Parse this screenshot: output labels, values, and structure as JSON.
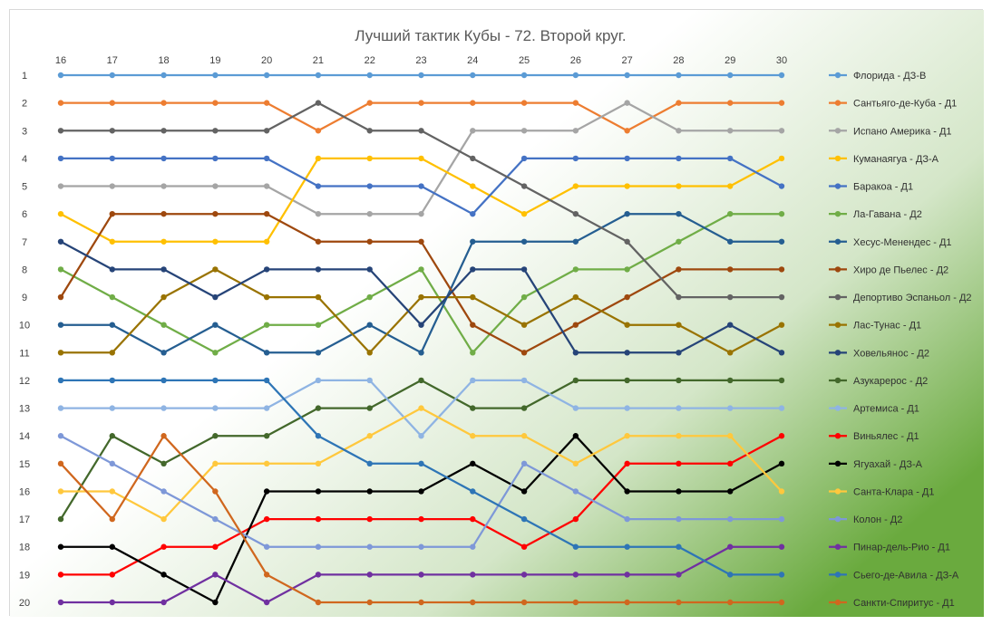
{
  "chart_data": {
    "type": "line",
    "title": "Лучший тактик Кубы - 72. Второй круг.",
    "x": [
      16,
      17,
      18,
      19,
      20,
      21,
      22,
      23,
      24,
      25,
      26,
      27,
      28,
      29,
      30
    ],
    "ylim": [
      1,
      20
    ],
    "y_inverted": true,
    "y_ticks": [
      1,
      2,
      3,
      4,
      5,
      6,
      7,
      8,
      9,
      10,
      11,
      12,
      13,
      14,
      15,
      16,
      17,
      18,
      19,
      20
    ],
    "legend_position": "right",
    "grid": false,
    "series": [
      {
        "name": "Флорида - ДЗ-В",
        "color": "#5B9BD5",
        "values": [
          1,
          1,
          1,
          1,
          1,
          1,
          1,
          1,
          1,
          1,
          1,
          1,
          1,
          1,
          1
        ]
      },
      {
        "name": "Сантьяго-де-Куба - Д1",
        "color": "#ED7D31",
        "values": [
          2,
          2,
          2,
          2,
          2,
          3,
          2,
          2,
          2,
          2,
          2,
          3,
          2,
          2,
          2
        ]
      },
      {
        "name": "Испано Америка - Д1",
        "color": "#A5A5A5",
        "values": [
          5,
          5,
          5,
          5,
          5,
          6,
          6,
          6,
          3,
          3,
          3,
          2,
          3,
          3,
          3
        ]
      },
      {
        "name": "Куманаягуа - ДЗ-А",
        "color": "#FFC000",
        "values": [
          6,
          7,
          7,
          7,
          7,
          4,
          4,
          4,
          5,
          6,
          5,
          5,
          5,
          5,
          4
        ]
      },
      {
        "name": "Баракоа - Д1",
        "color": "#4472C4",
        "values": [
          4,
          4,
          4,
          4,
          4,
          5,
          5,
          5,
          6,
          4,
          4,
          4,
          4,
          4,
          5
        ]
      },
      {
        "name": "Ла-Гавана - Д2",
        "color": "#70AD47",
        "values": [
          8,
          9,
          10,
          11,
          10,
          10,
          9,
          8,
          11,
          9,
          8,
          8,
          7,
          6,
          6
        ]
      },
      {
        "name": "Хесус-Менендес - Д1",
        "color": "#255E91",
        "values": [
          10,
          10,
          11,
          10,
          11,
          11,
          10,
          11,
          7,
          7,
          7,
          6,
          6,
          7,
          7
        ]
      },
      {
        "name": "Хиро де Пьелес - Д2",
        "color": "#9E480E",
        "values": [
          9,
          6,
          6,
          6,
          6,
          7,
          7,
          7,
          10,
          11,
          10,
          9,
          8,
          8,
          8
        ]
      },
      {
        "name": "Депортиво Эспаньол - Д2",
        "color": "#636363",
        "values": [
          3,
          3,
          3,
          3,
          3,
          2,
          3,
          3,
          4,
          5,
          6,
          7,
          9,
          9,
          9
        ]
      },
      {
        "name": "Лас-Тунас - Д1",
        "color": "#997300",
        "values": [
          11,
          11,
          9,
          8,
          9,
          9,
          11,
          9,
          9,
          10,
          9,
          10,
          10,
          11,
          10
        ]
      },
      {
        "name": "Ховельянос - Д2",
        "color": "#264478",
        "values": [
          7,
          8,
          8,
          9,
          8,
          8,
          8,
          10,
          8,
          8,
          11,
          11,
          11,
          10,
          11
        ]
      },
      {
        "name": "Азукарерос - Д2",
        "color": "#43682B",
        "values": [
          17,
          14,
          15,
          14,
          14,
          13,
          13,
          12,
          13,
          13,
          12,
          12,
          12,
          12,
          12
        ]
      },
      {
        "name": "Артемиса - Д1",
        "color": "#8FB4E3",
        "values": [
          13,
          13,
          13,
          13,
          13,
          12,
          12,
          14,
          12,
          12,
          13,
          13,
          13,
          13,
          13
        ]
      },
      {
        "name": "Виньялес - Д1",
        "color": "#FF0000",
        "values": [
          19,
          19,
          18,
          18,
          17,
          17,
          17,
          17,
          17,
          18,
          17,
          15,
          15,
          15,
          14
        ]
      },
      {
        "name": "Ягуахай - ДЗ-А",
        "color": "#000000",
        "values": [
          18,
          18,
          19,
          20,
          16,
          16,
          16,
          16,
          15,
          16,
          14,
          16,
          16,
          16,
          15
        ]
      },
      {
        "name": "Санта-Клара - Д1",
        "color": "#FFC83D",
        "values": [
          16,
          16,
          17,
          15,
          15,
          15,
          14,
          13,
          14,
          14,
          15,
          14,
          14,
          14,
          16
        ]
      },
      {
        "name": "Колон - Д2",
        "color": "#7E98D8",
        "values": [
          14,
          15,
          16,
          17,
          18,
          18,
          18,
          18,
          18,
          15,
          16,
          17,
          17,
          17,
          17
        ]
      },
      {
        "name": "Пинар-дель-Рио - Д1",
        "color": "#7030A0",
        "values": [
          20,
          20,
          20,
          19,
          20,
          19,
          19,
          19,
          19,
          19,
          19,
          19,
          19,
          18,
          18
        ]
      },
      {
        "name": "Сьего-де-Авила - ДЗ-А",
        "color": "#2E75B6",
        "values": [
          12,
          12,
          12,
          12,
          12,
          14,
          15,
          15,
          16,
          17,
          18,
          18,
          18,
          19,
          19
        ]
      },
      {
        "name": "Санкти-Спиритус - Д1",
        "color": "#D0671E",
        "values": [
          15,
          17,
          14,
          16,
          19,
          20,
          20,
          20,
          20,
          20,
          20,
          20,
          20,
          20,
          20
        ]
      }
    ]
  }
}
